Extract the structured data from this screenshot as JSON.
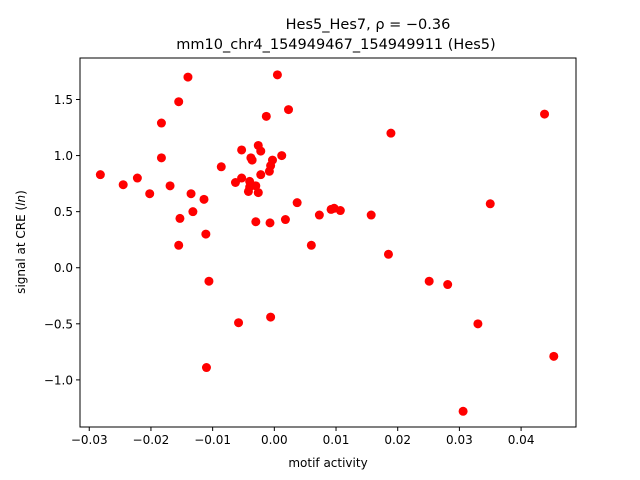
{
  "chart_data": {
    "type": "scatter",
    "title_line1": "Hes5_Hes7, ρ = −0.36",
    "title_line2": "mm10_chr4_154949467_154949911 (Hes5)",
    "xlabel": "motif activity",
    "ylabel": "signal at CRE (ln)",
    "xlim": [
      -0.0315,
      0.0489
    ],
    "ylim": [
      -1.42,
      1.87
    ],
    "xticks": [
      -0.03,
      -0.02,
      -0.01,
      0.0,
      0.01,
      0.02,
      0.03,
      0.04
    ],
    "xtick_labels": [
      "−0.03",
      "−0.02",
      "−0.01",
      "0.00",
      "0.01",
      "0.02",
      "0.03",
      "0.04"
    ],
    "yticks": [
      -1.0,
      -0.5,
      0.0,
      0.5,
      1.0,
      1.5
    ],
    "ytick_labels": [
      "−1.0",
      "−0.5",
      "0.0",
      "0.5",
      "1.0",
      "1.5"
    ],
    "grid": false,
    "marker_color": "#ff0000",
    "points": [
      {
        "x": -0.0282,
        "y": 0.83
      },
      {
        "x": -0.0245,
        "y": 0.74
      },
      {
        "x": -0.0222,
        "y": 0.8
      },
      {
        "x": -0.0202,
        "y": 0.66
      },
      {
        "x": -0.0183,
        "y": 1.29
      },
      {
        "x": -0.0183,
        "y": 0.98
      },
      {
        "x": -0.0169,
        "y": 0.73
      },
      {
        "x": -0.0155,
        "y": 1.48
      },
      {
        "x": -0.0153,
        "y": 0.44
      },
      {
        "x": -0.0155,
        "y": 0.2
      },
      {
        "x": -0.014,
        "y": 1.7
      },
      {
        "x": -0.0135,
        "y": 0.66
      },
      {
        "x": -0.0132,
        "y": 0.5
      },
      {
        "x": -0.0114,
        "y": 0.61
      },
      {
        "x": -0.0111,
        "y": 0.3
      },
      {
        "x": -0.0106,
        "y": -0.12
      },
      {
        "x": -0.011,
        "y": -0.89
      },
      {
        "x": -0.0086,
        "y": 0.9
      },
      {
        "x": -0.0063,
        "y": 0.76
      },
      {
        "x": -0.0058,
        "y": -0.49
      },
      {
        "x": -0.0053,
        "y": 1.05
      },
      {
        "x": -0.0053,
        "y": 0.8
      },
      {
        "x": -0.0042,
        "y": 0.68
      },
      {
        "x": -0.004,
        "y": 0.72
      },
      {
        "x": -0.004,
        "y": 0.77
      },
      {
        "x": -0.0038,
        "y": 0.98
      },
      {
        "x": -0.0036,
        "y": 0.96
      },
      {
        "x": -0.003,
        "y": 0.41
      },
      {
        "x": -0.003,
        "y": 0.73
      },
      {
        "x": -0.0026,
        "y": 0.67
      },
      {
        "x": -0.0026,
        "y": 1.09
      },
      {
        "x": -0.0022,
        "y": 1.04
      },
      {
        "x": -0.0022,
        "y": 0.83
      },
      {
        "x": -0.0013,
        "y": 1.35
      },
      {
        "x": -0.0008,
        "y": 0.86
      },
      {
        "x": -0.0006,
        "y": 0.91
      },
      {
        "x": -0.0003,
        "y": 0.96
      },
      {
        "x": -0.0007,
        "y": 0.4
      },
      {
        "x": -0.0006,
        "y": -0.44
      },
      {
        "x": 0.0005,
        "y": 1.72
      },
      {
        "x": 0.0012,
        "y": 1.0
      },
      {
        "x": 0.0018,
        "y": 0.43
      },
      {
        "x": 0.0023,
        "y": 1.41
      },
      {
        "x": 0.0037,
        "y": 0.58
      },
      {
        "x": 0.006,
        "y": 0.2
      },
      {
        "x": 0.0073,
        "y": 0.47
      },
      {
        "x": 0.0092,
        "y": 0.52
      },
      {
        "x": 0.0097,
        "y": 0.53
      },
      {
        "x": 0.0107,
        "y": 0.51
      },
      {
        "x": 0.0157,
        "y": 0.47
      },
      {
        "x": 0.0185,
        "y": 0.12
      },
      {
        "x": 0.0189,
        "y": 1.2
      },
      {
        "x": 0.0251,
        "y": -0.12
      },
      {
        "x": 0.0281,
        "y": -0.15
      },
      {
        "x": 0.0306,
        "y": -1.28
      },
      {
        "x": 0.033,
        "y": -0.5
      },
      {
        "x": 0.035,
        "y": 0.57
      },
      {
        "x": 0.0438,
        "y": 1.37
      },
      {
        "x": 0.0453,
        "y": -0.79
      }
    ]
  }
}
